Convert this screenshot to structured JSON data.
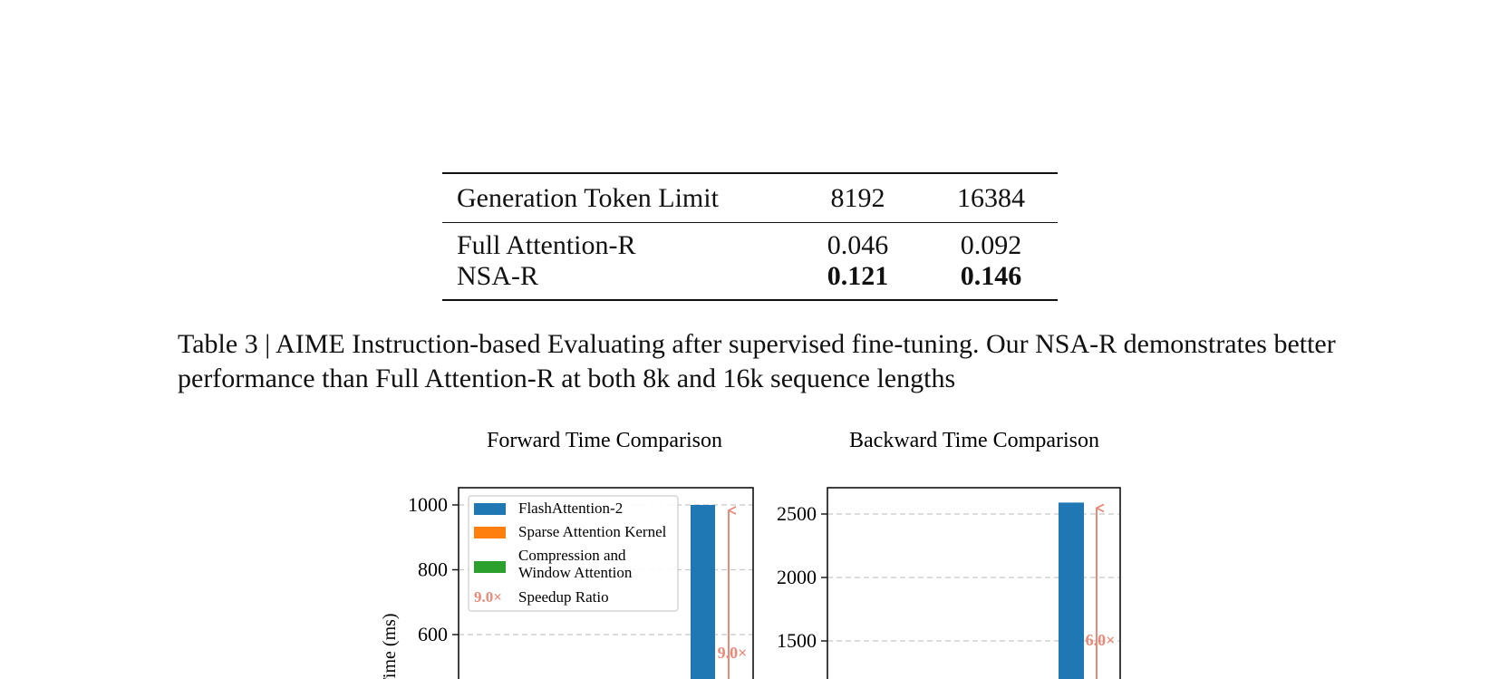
{
  "table": {
    "headers": [
      "Generation Token Limit",
      "8192",
      "16384"
    ],
    "rows": [
      {
        "label": "Full Attention-R",
        "values": [
          "0.046",
          "0.092"
        ],
        "bold": [
          false,
          false
        ]
      },
      {
        "label": "NSA-R",
        "values": [
          "0.121",
          "0.146"
        ],
        "bold": [
          true,
          true
        ]
      }
    ]
  },
  "caption": "Table 3 | AIME Instruction-based Evaluating after supervised fine-tuning. Our NSA-R demonstrates better performance than Full Attention-R at both 8k and 16k sequence lengths",
  "colors": {
    "flash": "#1f77b4",
    "sparse": "#ff7f0e",
    "compression": "#2ca02c",
    "speedup": "#ec8878",
    "grid": "#c8c8c8"
  },
  "chart_data": [
    {
      "type": "bar",
      "title": "Forward Time Comparison",
      "ylabel": "Time (ms)",
      "yticks": [
        600,
        800,
        1000
      ],
      "ylim": [
        500,
        1050
      ],
      "grid": true,
      "legend_position": "top-left",
      "legend": [
        {
          "label": "FlashAttention-2",
          "kind": "flash"
        },
        {
          "label": "Sparse Attention Kernel",
          "kind": "sparse"
        },
        {
          "label": "Compression and\nWindow Attention",
          "kind": "compression"
        },
        {
          "label": "Speedup Ratio",
          "kind": "speedup",
          "symbol": "9.0×"
        }
      ],
      "series": [
        {
          "name": "FlashAttention-2",
          "values": [
            1000
          ]
        }
      ],
      "annotations": [
        {
          "text": "9.0×"
        }
      ]
    },
    {
      "type": "bar",
      "title": "Backward Time Comparison",
      "ylabel": "",
      "yticks": [
        1500,
        2000,
        2500
      ],
      "ylim": [
        1200,
        2650
      ],
      "grid": true,
      "series": [
        {
          "name": "FlashAttention-2",
          "values": [
            2590
          ]
        }
      ],
      "annotations": [
        {
          "text": "6.0×"
        }
      ]
    }
  ]
}
